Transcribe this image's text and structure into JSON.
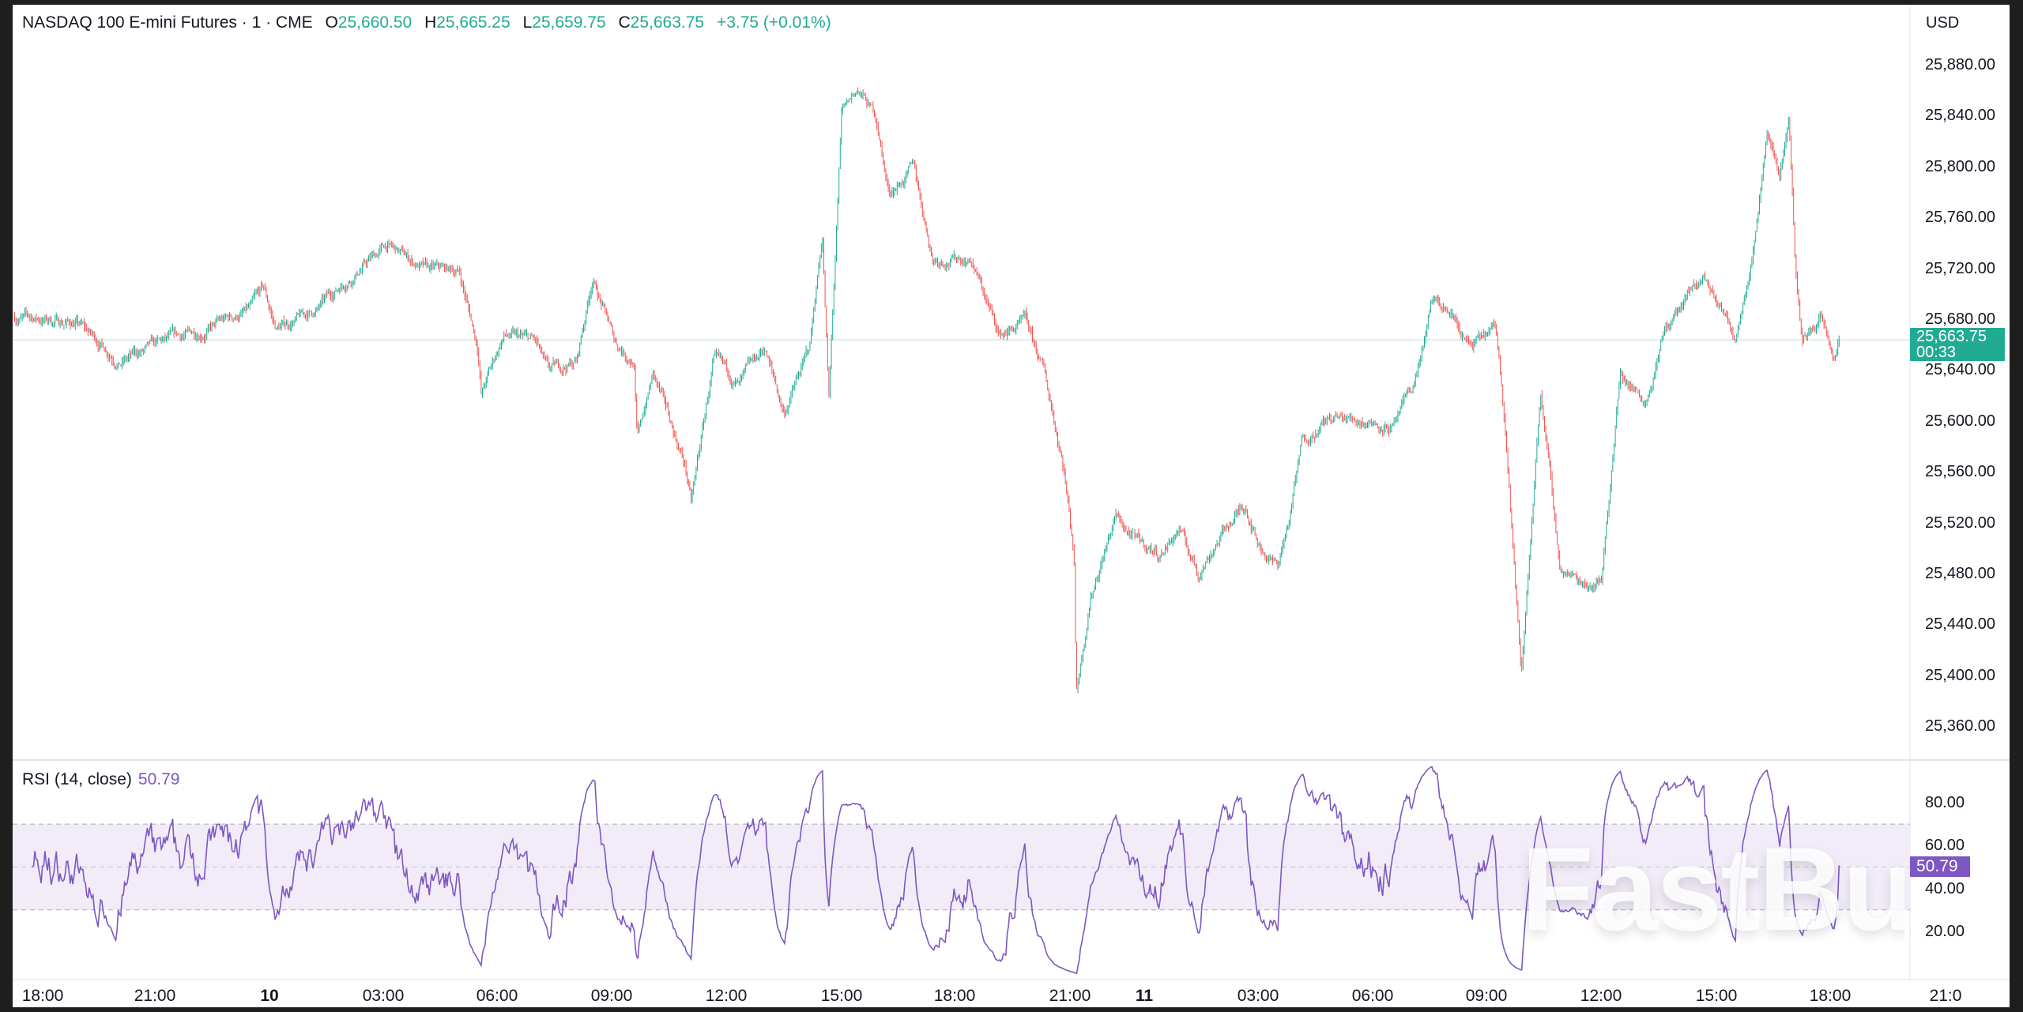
{
  "header": {
    "symbol": "NASDAQ 100 E-mini Futures · 1 · CME",
    "open_label": "O",
    "open": "25,660.50",
    "high_label": "H",
    "high": "25,665.25",
    "low_label": "L",
    "low": "25,659.75",
    "close_label": "C",
    "close": "25,663.75",
    "change": "+3.75 (+0.01%)"
  },
  "price_axis": {
    "currency": "USD",
    "ticks": [
      "25,880.00",
      "25,840.00",
      "25,800.00",
      "25,760.00",
      "25,720.00",
      "25,680.00",
      "25,640.00",
      "25,600.00",
      "25,560.00",
      "25,520.00",
      "25,480.00",
      "25,440.00",
      "25,400.00",
      "25,360.00"
    ],
    "current_price": "25,663.75",
    "countdown": "00:33"
  },
  "rsi": {
    "label": "RSI (14, close)",
    "value": "50.79",
    "ticks": [
      "80.00",
      "60.00",
      "40.00",
      "20.00"
    ],
    "upper_band": 70,
    "middle": 50,
    "lower_band": 30
  },
  "time_axis": {
    "ticks": [
      {
        "label": "18:00",
        "time": "9 18:00",
        "day": false
      },
      {
        "label": "21:00",
        "time": "9 21:00",
        "day": false
      },
      {
        "label": "10",
        "time": "10 00:00",
        "day": true
      },
      {
        "label": "03:00",
        "time": "10 03:00",
        "day": false
      },
      {
        "label": "06:00",
        "time": "10 06:00",
        "day": false
      },
      {
        "label": "09:00",
        "time": "10 09:00",
        "day": false
      },
      {
        "label": "12:00",
        "time": "10 12:00",
        "day": false
      },
      {
        "label": "15:00",
        "time": "10 15:00",
        "day": false
      },
      {
        "label": "18:00",
        "time": "10 18:00",
        "day": false
      },
      {
        "label": "21:00",
        "time": "10 21:00",
        "day": false
      },
      {
        "label": "11",
        "time": "11 00:00",
        "day": true
      },
      {
        "label": "03:00",
        "time": "11 03:00",
        "day": false
      },
      {
        "label": "06:00",
        "time": "11 06:00",
        "day": false
      },
      {
        "label": "09:00",
        "time": "11 09:00",
        "day": false
      },
      {
        "label": "12:00",
        "time": "11 12:00",
        "day": false
      },
      {
        "label": "15:00",
        "time": "11 15:00",
        "day": false
      },
      {
        "label": "18:00",
        "time": "11 18:00",
        "day": false
      },
      {
        "label": "21:0",
        "time": "11 21:00",
        "day": false
      }
    ]
  },
  "watermark": "FastBull",
  "colors": {
    "up": "#22ab94",
    "down": "#ef5350",
    "rsi": "#7e57c2",
    "rsi_band": "#ede7f6",
    "price_line": "#22ab94"
  },
  "chart_data": {
    "type": "candlestick",
    "interval": "1 minute",
    "ylim": [
      25340,
      25895
    ],
    "rsi_ylim": [
      0,
      100
    ],
    "grid": false,
    "price_path": [
      [
        "9 17:15",
        25682
      ],
      [
        "9 18:55",
        25677
      ],
      [
        "9 20:05",
        25647
      ],
      [
        "9 21:20",
        25662
      ],
      [
        "9 22:20",
        25672
      ],
      [
        "9 23:30",
        25687
      ],
      [
        "9 23:50",
        25703
      ],
      [
        "10 00:10",
        25672
      ],
      [
        "10 01:15",
        25687
      ],
      [
        "10 01:55",
        25708
      ],
      [
        "10 03:05",
        25738
      ],
      [
        "10 04:10",
        25718
      ],
      [
        "10 05:00",
        25718
      ],
      [
        "10 05:30",
        25657
      ],
      [
        "10 05:35",
        25622
      ],
      [
        "10 06:10",
        25667
      ],
      [
        "10 07:00",
        25662
      ],
      [
        "10 07:20",
        25637
      ],
      [
        "10 08:05",
        25647
      ],
      [
        "10 08:30",
        25713
      ],
      [
        "10 09:05",
        25662
      ],
      [
        "10 09:35",
        25647
      ],
      [
        "10 09:40",
        25586
      ],
      [
        "10 10:05",
        25637
      ],
      [
        "10 10:55",
        25566
      ],
      [
        "10 11:05",
        25535
      ],
      [
        "10 11:40",
        25647
      ],
      [
        "10 12:20",
        25627
      ],
      [
        "10 13:00",
        25657
      ],
      [
        "10 13:30",
        25606
      ],
      [
        "10 14:10",
        25657
      ],
      [
        "10 14:30",
        25748
      ],
      [
        "10 14:40",
        25616
      ],
      [
        "10 15:00",
        25839
      ],
      [
        "10 15:25",
        25860
      ],
      [
        "10 15:55",
        25839
      ],
      [
        "10 16:15",
        25779
      ],
      [
        "10 16:55",
        25799
      ],
      [
        "10 17:25",
        25728
      ],
      [
        "10 18:25",
        25728
      ],
      [
        "10 19:10",
        25667
      ],
      [
        "10 19:50",
        25677
      ],
      [
        "10 20:20",
        25637
      ],
      [
        "10 20:50",
        25566
      ],
      [
        "10 21:10",
        25495
      ],
      [
        "10 21:15",
        25388
      ],
      [
        "10 21:50",
        25464
      ],
      [
        "10 22:50",
        25525
      ],
      [
        "10 23:40",
        25505
      ],
      [
        "11 00:25",
        25495
      ],
      [
        "11 00:55",
        25515
      ],
      [
        "11 01:25",
        25480
      ],
      [
        "11 02:00",
        25510
      ],
      [
        "11 02:40",
        25535
      ],
      [
        "11 03:00",
        25505
      ],
      [
        "11 03:30",
        25485
      ],
      [
        "11 03:50",
        25525
      ],
      [
        "11 04:10",
        25586
      ],
      [
        "11 04:50",
        25601
      ],
      [
        "11 05:20",
        25601
      ],
      [
        "11 05:50",
        25601
      ],
      [
        "11 06:35",
        25596
      ],
      [
        "11 07:05",
        25627
      ],
      [
        "11 07:35",
        25693
      ],
      [
        "11 08:05",
        25683
      ],
      [
        "11 08:35",
        25657
      ],
      [
        "11 09:15",
        25672
      ],
      [
        "11 09:30",
        25596
      ],
      [
        "11 09:55",
        25398
      ],
      [
        "11 10:25",
        25627
      ],
      [
        "11 10:55",
        25485
      ],
      [
        "11 11:25",
        25474
      ],
      [
        "11 12:00",
        25474
      ],
      [
        "11 12:30",
        25637
      ],
      [
        "11 13:10",
        25617
      ],
      [
        "11 13:40",
        25672
      ],
      [
        "11 14:40",
        25713
      ],
      [
        "11 15:30",
        25667
      ],
      [
        "11 16:00",
        25743
      ],
      [
        "11 16:20",
        25829
      ],
      [
        "11 16:40",
        25794
      ],
      [
        "11 16:55",
        25839
      ],
      [
        "11 17:05",
        25723
      ],
      [
        "11 17:15",
        25662
      ],
      [
        "11 17:45",
        25682
      ],
      [
        "11 18:05",
        25647
      ],
      [
        "11 18:15",
        25663.75
      ]
    ]
  }
}
